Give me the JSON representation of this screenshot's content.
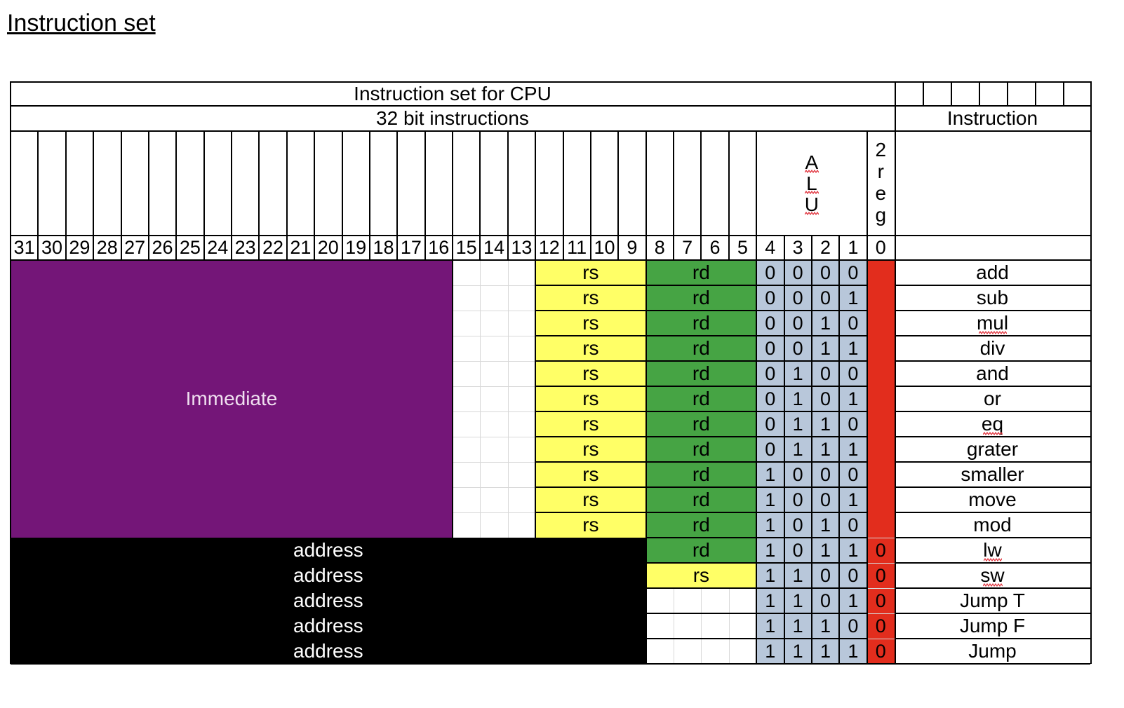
{
  "page_title": "Instruction set",
  "table": {
    "title": "Instruction set for CPU",
    "subtitle": "32 bit instructions",
    "instruction_header": "Instruction",
    "alu_header": [
      "A",
      "L",
      "U"
    ],
    "reg_header": [
      "2",
      "r",
      "e",
      "g"
    ],
    "bit_numbers": [
      "31",
      "30",
      "29",
      "28",
      "27",
      "26",
      "25",
      "24",
      "23",
      "22",
      "21",
      "20",
      "19",
      "18",
      "17",
      "16",
      "15",
      "14",
      "13",
      "12",
      "11",
      "10",
      "9",
      "8",
      "7",
      "6",
      "5",
      "4",
      "3",
      "2",
      "1",
      "0"
    ],
    "immediate_label": "Immediate",
    "rows": [
      {
        "rs": "rs",
        "rd": "rd",
        "alu": [
          "0",
          "0",
          "0",
          "0"
        ],
        "reg": "",
        "instruction": "add"
      },
      {
        "rs": "rs",
        "rd": "rd",
        "alu": [
          "0",
          "0",
          "0",
          "1"
        ],
        "reg": "",
        "instruction": "sub"
      },
      {
        "rs": "rs",
        "rd": "rd",
        "alu": [
          "0",
          "0",
          "1",
          "0"
        ],
        "reg": "",
        "instruction": "mul"
      },
      {
        "rs": "rs",
        "rd": "rd",
        "alu": [
          "0",
          "0",
          "1",
          "1"
        ],
        "reg": "",
        "instruction": "div"
      },
      {
        "rs": "rs",
        "rd": "rd",
        "alu": [
          "0",
          "1",
          "0",
          "0"
        ],
        "reg": "",
        "instruction": "and"
      },
      {
        "rs": "rs",
        "rd": "rd",
        "alu": [
          "0",
          "1",
          "0",
          "1"
        ],
        "reg": "",
        "instruction": "or"
      },
      {
        "rs": "rs",
        "rd": "rd",
        "alu": [
          "0",
          "1",
          "1",
          "0"
        ],
        "reg": "",
        "instruction": "eq"
      },
      {
        "rs": "rs",
        "rd": "rd",
        "alu": [
          "0",
          "1",
          "1",
          "1"
        ],
        "reg": "",
        "instruction": "grater"
      },
      {
        "rs": "rs",
        "rd": "rd",
        "alu": [
          "1",
          "0",
          "0",
          "0"
        ],
        "reg": "",
        "instruction": "smaller"
      },
      {
        "rs": "rs",
        "rd": "rd",
        "alu": [
          "1",
          "0",
          "0",
          "1"
        ],
        "reg": "",
        "instruction": "move"
      },
      {
        "rs": "rs",
        "rd": "rd",
        "alu": [
          "1",
          "0",
          "1",
          "0"
        ],
        "reg": "",
        "instruction": "mod"
      },
      {
        "address": "address",
        "reg_field": "rd",
        "alu": [
          "1",
          "0",
          "1",
          "1"
        ],
        "reg": "0",
        "instruction": "lw"
      },
      {
        "address": "address",
        "reg_field": "rs",
        "alu": [
          "1",
          "1",
          "0",
          "0"
        ],
        "reg": "0",
        "instruction": "sw"
      },
      {
        "address": "address",
        "reg_field": "",
        "alu": [
          "1",
          "1",
          "0",
          "1"
        ],
        "reg": "0",
        "instruction": "Jump T"
      },
      {
        "address": "address",
        "reg_field": "",
        "alu": [
          "1",
          "1",
          "1",
          "0"
        ],
        "reg": "0",
        "instruction": "Jump F"
      },
      {
        "address": "address",
        "reg_field": "",
        "alu": [
          "1",
          "1",
          "1",
          "1"
        ],
        "reg": "0",
        "instruction": "Jump"
      }
    ]
  },
  "colors": {
    "immediate": "#741678",
    "address": "#000000",
    "rs": "#ffff66",
    "rd": "#46a444",
    "alu": "#b8c7da",
    "reg": "#e22d1d",
    "spellcheck": "#e0303a"
  }
}
